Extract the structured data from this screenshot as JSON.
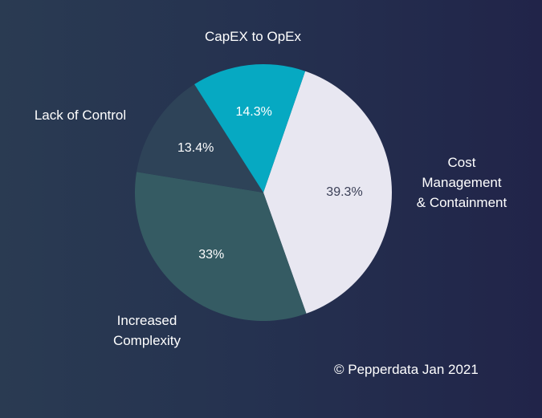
{
  "chart_data": {
    "type": "pie",
    "title": "",
    "slices": [
      {
        "label": "Cost\nManagement\n& Containment",
        "value": 39.3,
        "value_label": "39.3%",
        "color": "#e8e7f1",
        "value_color": "#3a3f56"
      },
      {
        "label": "Increased\nComplexity",
        "value": 33.0,
        "value_label": "33%",
        "color": "#355b63",
        "value_color": "#ffffff"
      },
      {
        "label": "Lack of Control",
        "value": 13.4,
        "value_label": "13.4%",
        "color": "#2e4358",
        "value_color": "#ffffff"
      },
      {
        "label": "CapEX to OpEx",
        "value": 14.3,
        "value_label": "14.3%",
        "color": "#06a9c2",
        "value_color": "#ffffff"
      }
    ],
    "start_angle_deg": 19,
    "direction": "clockwise"
  },
  "footer": {
    "copyright": "© Pepperdata Jan 2021"
  }
}
